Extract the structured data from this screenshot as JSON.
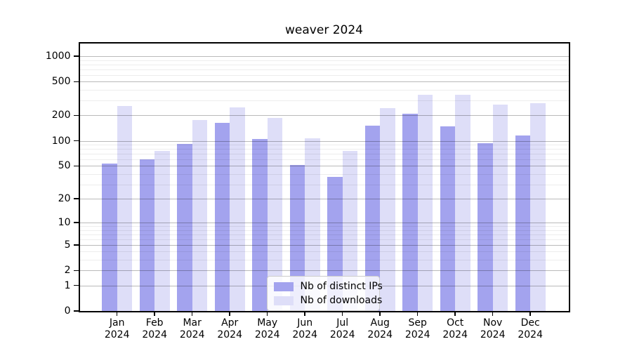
{
  "chart_data": {
    "type": "bar",
    "title": "weaver 2024",
    "categories": [
      "Jan 2024",
      "Feb 2024",
      "Mar 2024",
      "Apr 2024",
      "May 2024",
      "Jun 2024",
      "Jul 2024",
      "Aug 2024",
      "Sep 2024",
      "Oct 2024",
      "Nov 2024",
      "Dec 2024"
    ],
    "series": [
      {
        "name": "Nb of distinct IPs",
        "color": "#a3a3ee",
        "values": [
          53,
          60,
          92,
          163,
          104,
          51,
          37,
          150,
          208,
          147,
          93,
          116
        ]
      },
      {
        "name": "Nb of downloads",
        "color": "#dedef8",
        "values": [
          260,
          76,
          176,
          247,
          187,
          108,
          75,
          242,
          350,
          350,
          267,
          280
        ]
      }
    ],
    "yscale": "log1p",
    "yticks": [
      0,
      1,
      2,
      5,
      10,
      20,
      50,
      100,
      200,
      500,
      1000
    ],
    "minor_gridlines": [
      3,
      4,
      6,
      7,
      8,
      9,
      30,
      40,
      60,
      70,
      80,
      90,
      300,
      400,
      600,
      700,
      800,
      900
    ],
    "ylim": [
      0,
      1410
    ],
    "grid": "on",
    "legend_position": "lower-center-inside",
    "axis_color": "#000000",
    "major_grid_color": "#b0b0b0",
    "minor_grid_color": "#ececec"
  }
}
